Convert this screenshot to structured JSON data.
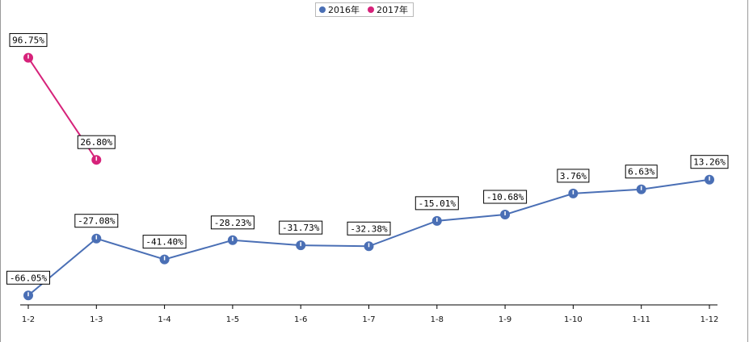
{
  "chart_data": {
    "type": "line",
    "categories": [
      "1-2",
      "1-3",
      "1-4",
      "1-5",
      "1-6",
      "1-7",
      "1-8",
      "1-9",
      "1-10",
      "1-11",
      "1-12"
    ],
    "series": [
      {
        "name": "2016年",
        "color": "#4a6fb5",
        "values": [
          -66.05,
          -27.08,
          -41.4,
          -28.23,
          -31.73,
          -32.38,
          -15.01,
          -10.68,
          3.76,
          6.63,
          13.26
        ],
        "labels": [
          "-66.05%",
          "-27.08%",
          "-41.40%",
          "-28.23%",
          "-31.73%",
          "-32.38%",
          "-15.01%",
          "-10.68%",
          "3.76%",
          "6.63%",
          "13.26%"
        ]
      },
      {
        "name": "2017年",
        "color": "#d6227a",
        "values": [
          96.75,
          26.8,
          null,
          null,
          null,
          null,
          null,
          null,
          null,
          null,
          null
        ],
        "labels": [
          "96.75%",
          "26.80%",
          null,
          null,
          null,
          null,
          null,
          null,
          null,
          null,
          null
        ]
      }
    ],
    "legend_position": "top-center",
    "grid": false
  }
}
